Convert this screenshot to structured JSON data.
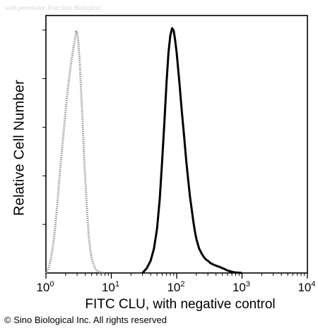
{
  "watermark": "with permission from Sino Biological",
  "copyright": "© Sino Biological Inc. All rights reserved",
  "chart_data": {
    "type": "area",
    "title": "",
    "xlabel": "FITC CLU, with negative control",
    "ylabel": "Relative Cell Number",
    "xscale": "log",
    "xlim": [
      1,
      10000
    ],
    "ylim": [
      0,
      1
    ],
    "grid": false,
    "x_ticks": [
      {
        "base": "10",
        "exp": "0",
        "value": 1
      },
      {
        "base": "10",
        "exp": "1",
        "value": 10
      },
      {
        "base": "10",
        "exp": "2",
        "value": 100
      },
      {
        "base": "10",
        "exp": "3",
        "value": 1000
      },
      {
        "base": "10",
        "exp": "4",
        "value": 10000
      }
    ],
    "series": [
      {
        "style": "dotted-gray",
        "color": "#8a8a8a",
        "x": [
          1.0,
          1.1,
          1.2,
          1.3,
          1.4,
          1.5,
          1.6,
          1.7,
          1.8,
          1.9,
          2.0,
          2.1,
          2.2,
          2.3,
          2.4,
          2.5,
          2.6,
          2.7,
          2.8,
          2.9,
          3.0,
          3.1,
          3.2,
          3.3,
          3.4,
          3.5,
          3.6,
          3.7,
          3.8,
          3.9,
          4.0,
          4.1,
          4.2,
          4.3,
          4.4,
          4.5,
          4.6,
          4.8,
          5.0,
          5.3,
          5.6,
          6.0,
          6.5,
          7.0,
          8.0
        ],
        "y": [
          0.0,
          0.02,
          0.06,
          0.12,
          0.2,
          0.29,
          0.38,
          0.46,
          0.53,
          0.6,
          0.66,
          0.72,
          0.77,
          0.81,
          0.85,
          0.88,
          0.91,
          0.94,
          0.96,
          0.99,
          0.98,
          0.96,
          0.91,
          0.85,
          0.78,
          0.71,
          0.64,
          0.57,
          0.5,
          0.44,
          0.38,
          0.33,
          0.28,
          0.24,
          0.2,
          0.16,
          0.13,
          0.09,
          0.06,
          0.04,
          0.02,
          0.01,
          0.005,
          0.002,
          0.0
        ]
      },
      {
        "style": "solid-black",
        "color": "#000000",
        "x": [
          30,
          35,
          40,
          45,
          50,
          55,
          60,
          65,
          70,
          75,
          80,
          85,
          90,
          95,
          100,
          110,
          120,
          130,
          140,
          150,
          160,
          170,
          180,
          190,
          200,
          220,
          240,
          260,
          280,
          300,
          330,
          360,
          400,
          450,
          500,
          550,
          600,
          700,
          800,
          1000
        ],
        "y": [
          0.0,
          0.02,
          0.05,
          0.1,
          0.18,
          0.3,
          0.46,
          0.62,
          0.78,
          0.9,
          0.97,
          1.0,
          0.99,
          0.95,
          0.9,
          0.78,
          0.66,
          0.56,
          0.46,
          0.38,
          0.31,
          0.26,
          0.21,
          0.17,
          0.14,
          0.1,
          0.08,
          0.065,
          0.055,
          0.05,
          0.04,
          0.035,
          0.03,
          0.025,
          0.02,
          0.015,
          0.01,
          0.005,
          0.002,
          0.0
        ]
      }
    ]
  }
}
